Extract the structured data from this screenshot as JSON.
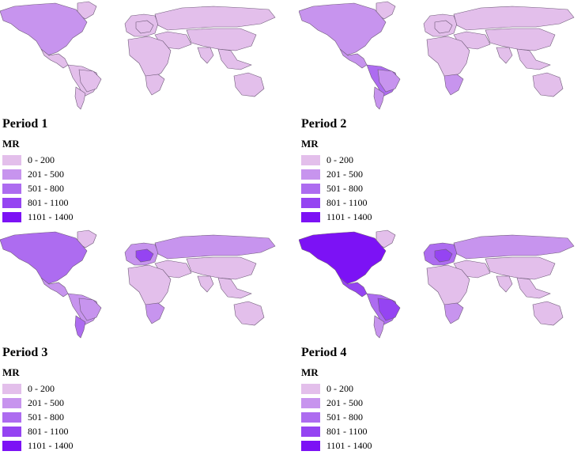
{
  "legend_title": "MR",
  "classes": [
    {
      "label": "0 - 200",
      "color": "#e3bfeb"
    },
    {
      "label": "201 - 500",
      "color": "#c794ee"
    },
    {
      "label": "501 - 800",
      "color": "#ad6cf0"
    },
    {
      "label": "801 - 1100",
      "color": "#9544f2"
    },
    {
      "label": "1101 - 1400",
      "color": "#7c12f5"
    }
  ],
  "ocean_color": "#ffffff",
  "border_color": "#6e5a78",
  "panels": [
    {
      "title": "Period 1",
      "regions": {
        "north_america": 1,
        "central_america": 0,
        "south_america": 0,
        "brazil": 0,
        "southern_cone": 0,
        "greenland": 0,
        "europe": 0,
        "central_europe": 0,
        "russia": 0,
        "middle_east": 0,
        "africa": 0,
        "southern_africa": 0,
        "asia": 0,
        "india": 0,
        "southeast_asia": 0,
        "australia": 0
      }
    },
    {
      "title": "Period 2",
      "regions": {
        "north_america": 1,
        "central_america": 1,
        "south_america": 2,
        "brazil": 1,
        "southern_cone": 1,
        "greenland": 0,
        "europe": 0,
        "central_europe": 0,
        "russia": 0,
        "middle_east": 0,
        "africa": 0,
        "southern_africa": 1,
        "asia": 0,
        "india": 0,
        "southeast_asia": 0,
        "australia": 0
      }
    },
    {
      "title": "Period 3",
      "regions": {
        "north_america": 2,
        "central_america": 1,
        "south_america": 1,
        "brazil": 1,
        "southern_cone": 2,
        "greenland": 0,
        "europe": 1,
        "central_europe": 3,
        "russia": 1,
        "middle_east": 0,
        "africa": 0,
        "southern_africa": 1,
        "asia": 0,
        "india": 0,
        "southeast_asia": 0,
        "australia": 0
      }
    },
    {
      "title": "Period 4",
      "regions": {
        "north_america": 4,
        "central_america": 3,
        "south_america": 2,
        "brazil": 3,
        "southern_cone": 1,
        "greenland": 0,
        "europe": 2,
        "central_europe": 3,
        "russia": 1,
        "middle_east": 0,
        "africa": 0,
        "southern_africa": 1,
        "asia": 0,
        "india": 0,
        "southeast_asia": 0,
        "australia": 0
      }
    }
  ]
}
